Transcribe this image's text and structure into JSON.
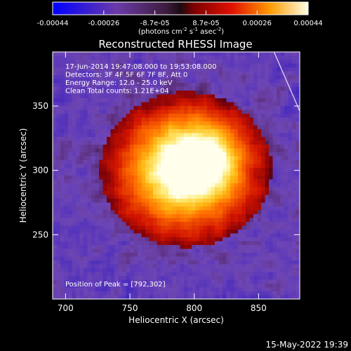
{
  "colorbar": {
    "ticks": [
      "-0.00044",
      "-0.00026",
      "-8.7e-05",
      "8.7e-05",
      "0.00026",
      "0.00044"
    ],
    "unit_main": "(photons cm",
    "unit_exp1": "-2",
    "unit_mid": " s",
    "unit_exp2": "-1",
    "unit_mid2": " asec",
    "unit_exp3": "-2",
    "unit_end": ")"
  },
  "chart_data": {
    "type": "heatmap",
    "title": "Reconstructed RHESSI Image",
    "xlabel": "Heliocentric X (arcsec)",
    "ylabel": "Heliocentric Y (arcsec)",
    "xlim": [
      690,
      882
    ],
    "ylim": [
      200,
      392
    ],
    "xticks": [
      700,
      750,
      800,
      850
    ],
    "yticks": [
      250,
      300,
      350
    ],
    "color_range": [
      -0.00044,
      0.00044
    ],
    "peak": [
      792,
      302
    ],
    "annotations": [
      "17-Jun-2014 19:47:08.000 to 19:53:08.000",
      "Detectors: 3F 4F 5F 6F 7F 8F, Att 0",
      "Energy Range: 12.0 - 25.0 keV",
      "Clean      Total counts: 1.21E+04",
      "Position of Peak = [792,302]"
    ],
    "timestamp": "15-May-2022 19:39",
    "limb_line": {
      "x": [
        862,
        882
      ],
      "y": [
        392,
        346
      ]
    }
  }
}
